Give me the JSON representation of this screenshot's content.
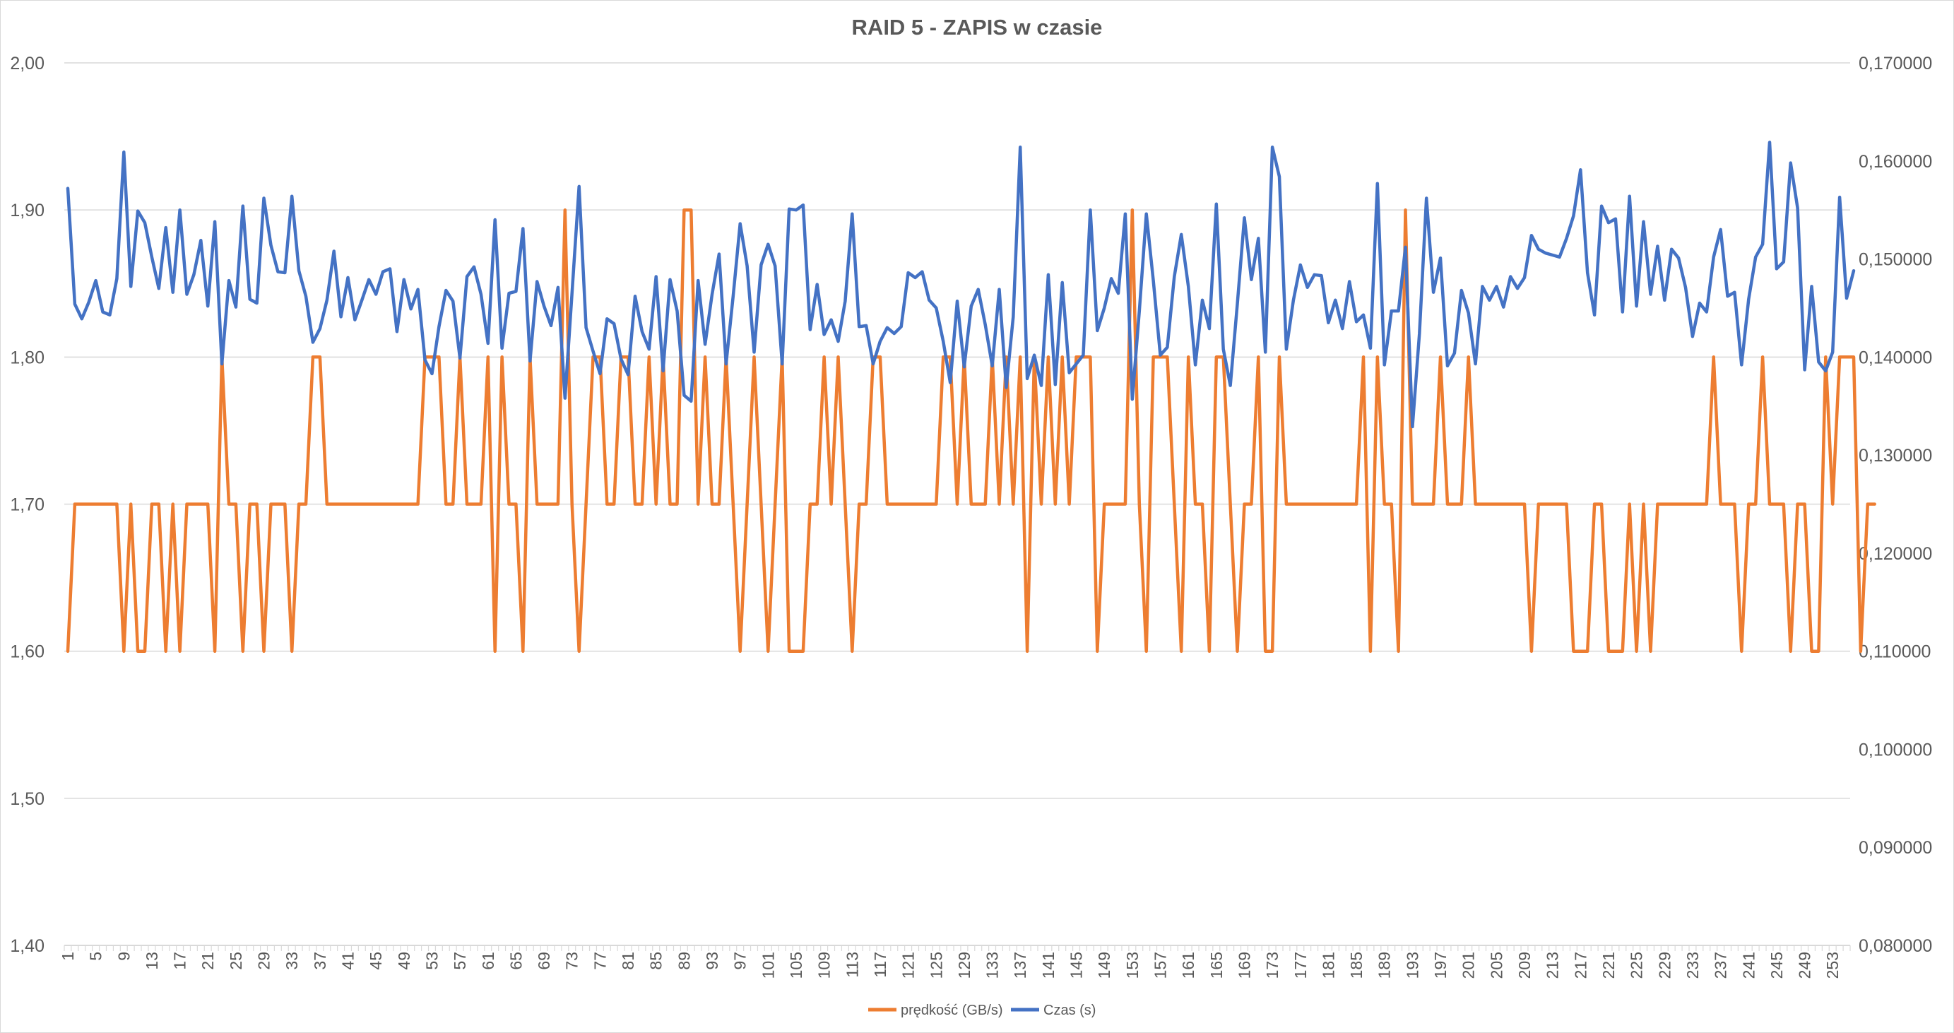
{
  "chart_data": {
    "type": "line",
    "title": "RAID 5 - ZAPIS w czasie",
    "x": {
      "start": 1,
      "end": 255,
      "tick_labels": [
        "1",
        "5",
        "9",
        "13",
        "17",
        "21",
        "25",
        "29",
        "33",
        "37",
        "41",
        "45",
        "49",
        "53",
        "57",
        "61",
        "65",
        "69",
        "73",
        "77",
        "81",
        "85",
        "89",
        "93",
        "97",
        "101",
        "105",
        "109",
        "113",
        "117",
        "121",
        "125",
        "129",
        "133",
        "137",
        "141",
        "145",
        "149",
        "153",
        "157",
        "161",
        "165",
        "169",
        "173",
        "177",
        "181",
        "185",
        "189",
        "193",
        "197",
        "201",
        "205",
        "209",
        "213",
        "217",
        "221",
        "225",
        "229",
        "233",
        "237",
        "241",
        "245",
        "249",
        "253"
      ]
    },
    "y_left": {
      "min": 1.4,
      "max": 2.0,
      "tick_labels": [
        "2,00",
        "1,90",
        "1,80",
        "1,70",
        "1,60",
        "1,50",
        "1,40"
      ]
    },
    "y_right": {
      "min": 0.08,
      "max": 0.17,
      "tick_labels": [
        "0,170000",
        "0,160000",
        "0,150000",
        "0,140000",
        "0,130000",
        "0,120000",
        "0,110000",
        "0,100000",
        "0,090000",
        "0,080000"
      ]
    },
    "grid": "horizontal",
    "legend_position": "bottom",
    "series": [
      {
        "name": "prędkość (GB/s)",
        "axis": "left",
        "color": "#ED7D31",
        "values": [
          1.6,
          1.7,
          1.7,
          1.7,
          1.7,
          1.7,
          1.7,
          1.7,
          1.6,
          1.7,
          1.6,
          1.6,
          1.7,
          1.7,
          1.6,
          1.7,
          1.6,
          1.7,
          1.7,
          1.7,
          1.7,
          1.6,
          1.8,
          1.7,
          1.7,
          1.6,
          1.7,
          1.7,
          1.6,
          1.7,
          1.7,
          1.7,
          1.6,
          1.7,
          1.7,
          1.8,
          1.8,
          1.7,
          1.7,
          1.7,
          1.7,
          1.7,
          1.7,
          1.7,
          1.7,
          1.7,
          1.7,
          1.7,
          1.7,
          1.7,
          1.7,
          1.8,
          1.8,
          1.8,
          1.7,
          1.7,
          1.8,
          1.7,
          1.7,
          1.7,
          1.8,
          1.6,
          1.8,
          1.7,
          1.7,
          1.6,
          1.8,
          1.7,
          1.7,
          1.7,
          1.7,
          1.9,
          1.7,
          1.6,
          1.7,
          1.8,
          1.8,
          1.7,
          1.7,
          1.8,
          1.8,
          1.7,
          1.7,
          1.8,
          1.7,
          1.8,
          1.7,
          1.7,
          1.9,
          1.9,
          1.7,
          1.8,
          1.7,
          1.7,
          1.8,
          1.7,
          1.6,
          1.7,
          1.8,
          1.7,
          1.6,
          1.7,
          1.8,
          1.6,
          1.6,
          1.6,
          1.7,
          1.7,
          1.8,
          1.7,
          1.8,
          1.7,
          1.6,
          1.7,
          1.7,
          1.8,
          1.8,
          1.7,
          1.7,
          1.7,
          1.7,
          1.7,
          1.7,
          1.7,
          1.7,
          1.8,
          1.8,
          1.7,
          1.8,
          1.7,
          1.7,
          1.7,
          1.8,
          1.7,
          1.8,
          1.7,
          1.8,
          1.6,
          1.8,
          1.7,
          1.8,
          1.7,
          1.8,
          1.7,
          1.8,
          1.8,
          1.8,
          1.6,
          1.7,
          1.7,
          1.7,
          1.7,
          1.9,
          1.7,
          1.6,
          1.8,
          1.8,
          1.8,
          1.7,
          1.6,
          1.8,
          1.7,
          1.7,
          1.6,
          1.8,
          1.8,
          1.7,
          1.6,
          1.7,
          1.7,
          1.8,
          1.6,
          1.6,
          1.8,
          1.7,
          1.7,
          1.7,
          1.7,
          1.7,
          1.7,
          1.7,
          1.7,
          1.7,
          1.7,
          1.7,
          1.8,
          1.6,
          1.8,
          1.7,
          1.7,
          1.6,
          1.9,
          1.7,
          1.7,
          1.7,
          1.7,
          1.8,
          1.7,
          1.7,
          1.7,
          1.8,
          1.7,
          1.7,
          1.7,
          1.7,
          1.7,
          1.7,
          1.7,
          1.7,
          1.6,
          1.7,
          1.7,
          1.7,
          1.7,
          1.7,
          1.6,
          1.6,
          1.6,
          1.7,
          1.7,
          1.6,
          1.6,
          1.6,
          1.7,
          1.6,
          1.7,
          1.6,
          1.7,
          1.7,
          1.7,
          1.7,
          1.7,
          1.7,
          1.7,
          1.7,
          1.8,
          1.7,
          1.7,
          1.7,
          1.6,
          1.7,
          1.7,
          1.8,
          1.7,
          1.7,
          1.7,
          1.6,
          1.7,
          1.7,
          1.6,
          1.6,
          1.8,
          1.7,
          1.8,
          1.8,
          1.8,
          1.6,
          1.7,
          1.7
        ]
      },
      {
        "name": "Czas (s)",
        "axis": "right",
        "color": "#4472C4",
        "values": [
          0.1572,
          0.1454,
          0.1439,
          0.1456,
          0.1478,
          0.1446,
          0.1443,
          0.148,
          0.1609,
          0.1472,
          0.1549,
          0.1537,
          0.1502,
          0.147,
          0.1532,
          0.1466,
          0.155,
          0.1464,
          0.1484,
          0.1519,
          0.1452,
          0.1538,
          0.1393,
          0.1478,
          0.1451,
          0.1554,
          0.1459,
          0.1455,
          0.1562,
          0.1514,
          0.1487,
          0.1486,
          0.1564,
          0.1488,
          0.1462,
          0.1415,
          0.1429,
          0.1458,
          0.1508,
          0.1441,
          0.1481,
          0.1438,
          0.1458,
          0.1479,
          0.1464,
          0.1487,
          0.149,
          0.1426,
          0.1479,
          0.1449,
          0.1469,
          0.1397,
          0.1383,
          0.1431,
          0.1468,
          0.1457,
          0.1399,
          0.1482,
          0.1492,
          0.1464,
          0.1414,
          0.154,
          0.1409,
          0.1465,
          0.1467,
          0.1531,
          0.1396,
          0.1477,
          0.1452,
          0.1432,
          0.1471,
          0.1358,
          0.1465,
          0.1574,
          0.143,
          0.1406,
          0.1383,
          0.1439,
          0.1434,
          0.1398,
          0.1382,
          0.1462,
          0.1426,
          0.1408,
          0.1482,
          0.1386,
          0.1479,
          0.1447,
          0.1361,
          0.1355,
          0.1478,
          0.1413,
          0.1464,
          0.1505,
          0.1393,
          0.1462,
          0.1536,
          0.1493,
          0.1405,
          0.1494,
          0.1515,
          0.1493,
          0.1393,
          0.1551,
          0.155,
          0.1555,
          0.1428,
          0.1474,
          0.1423,
          0.1438,
          0.1416,
          0.1457,
          0.1546,
          0.1431,
          0.1432,
          0.1393,
          0.1416,
          0.143,
          0.1424,
          0.1431,
          0.1486,
          0.1481,
          0.1487,
          0.1458,
          0.145,
          0.1416,
          0.1374,
          0.1457,
          0.139,
          0.1452,
          0.1469,
          0.1433,
          0.1391,
          0.1469,
          0.1369,
          0.1441,
          0.1614,
          0.1378,
          0.1402,
          0.1371,
          0.1484,
          0.1372,
          0.1476,
          0.1384,
          0.1393,
          0.1402,
          0.155,
          0.1427,
          0.145,
          0.148,
          0.1465,
          0.1546,
          0.1357,
          0.1447,
          0.1546,
          0.1478,
          0.1402,
          0.141,
          0.1482,
          0.1525,
          0.1472,
          0.1392,
          0.1458,
          0.1429,
          0.1556,
          0.1408,
          0.1371,
          0.1454,
          0.1542,
          0.1479,
          0.1521,
          0.1405,
          0.1614,
          0.1584,
          0.1408,
          0.1458,
          0.1494,
          0.1471,
          0.1484,
          0.1483,
          0.1435,
          0.1458,
          0.1429,
          0.1477,
          0.1436,
          0.1443,
          0.1409,
          0.1577,
          0.1392,
          0.1447,
          0.1447,
          0.1512,
          0.1329,
          0.1424,
          0.1562,
          0.1466,
          0.1501,
          0.1391,
          0.1404,
          0.1468,
          0.1445,
          0.1393,
          0.1472,
          0.1458,
          0.1472,
          0.1451,
          0.1482,
          0.147,
          0.1481,
          0.1524,
          0.151,
          0.1506,
          0.1504,
          0.1502,
          0.1521,
          0.1544,
          0.1591,
          0.1486,
          0.1443,
          0.1554,
          0.1537,
          0.1541,
          0.1446,
          0.1564,
          0.1452,
          0.1538,
          0.1464,
          0.1513,
          0.1458,
          0.151,
          0.1501,
          0.1471,
          0.1421,
          0.1455,
          0.1446,
          0.1502,
          0.153,
          0.1462,
          0.1466,
          0.1392,
          0.1459,
          0.1502,
          0.1515,
          0.1619,
          0.149,
          0.1497,
          0.1598,
          0.1552,
          0.1387,
          0.1472,
          0.1395,
          0.1386,
          0.1405,
          0.1563,
          0.146,
          0.1488
        ]
      }
    ]
  }
}
